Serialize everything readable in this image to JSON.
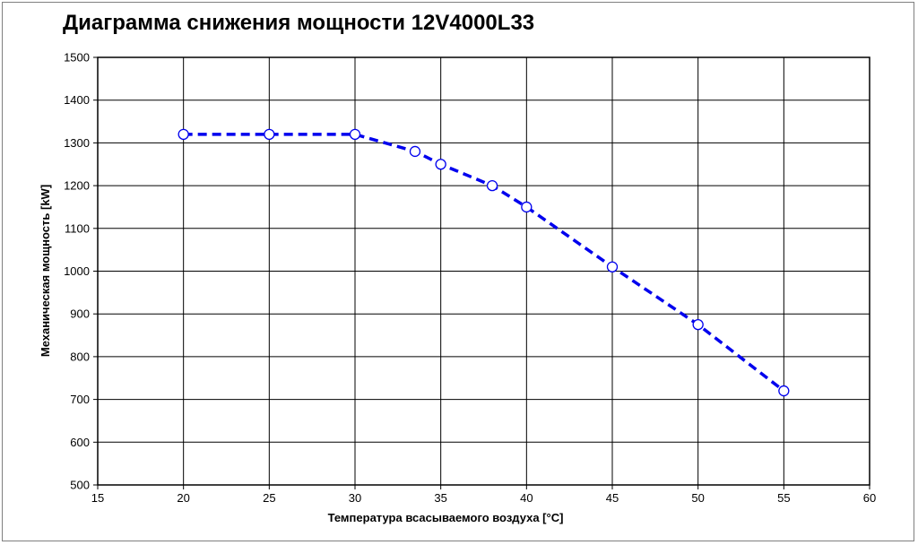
{
  "chart_data": {
    "type": "line",
    "title": "Диаграмма снижения мощности 12V4000L33",
    "xlabel": "Температура всасываемого воздуха [°C]",
    "ylabel": "Механическая мощность [kW]",
    "xlim": [
      15,
      60
    ],
    "ylim": [
      500,
      1500
    ],
    "xticks": [
      15,
      20,
      25,
      30,
      35,
      40,
      45,
      50,
      55,
      60
    ],
    "yticks": [
      500,
      600,
      700,
      800,
      900,
      1000,
      1100,
      1200,
      1300,
      1400,
      1500
    ],
    "grid": true,
    "line_color": "#0000ee",
    "line_style": "dashed",
    "marker": "open-circle",
    "series": [
      {
        "x": [
          20,
          25,
          30,
          33.5,
          35,
          38,
          40,
          45,
          50,
          55
        ],
        "y": [
          1320,
          1320,
          1320,
          1280,
          1250,
          1200,
          1150,
          1010,
          875,
          720
        ]
      }
    ]
  }
}
